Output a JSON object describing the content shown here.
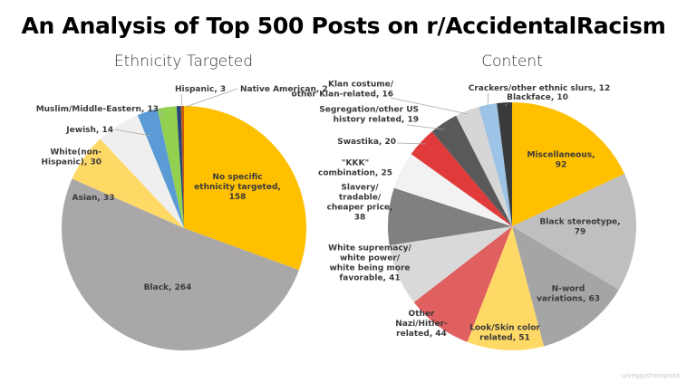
{
  "title": "An Analysis of Top 500 Posts on r/AccidentalRacism",
  "credit": "u/veggytheropoda",
  "chart_data": [
    {
      "type": "pie",
      "title": "Ethnicity Targeted",
      "start": "top",
      "direction": "clockwise",
      "slices": [
        {
          "label": "No specific ethnicity targeted",
          "value": 158,
          "color": "#FFC000",
          "text_lines": [
            "No specific",
            "ethnicity targeted,",
            "158"
          ]
        },
        {
          "label": "Black",
          "value": 264,
          "color": "#A9A7A8",
          "text_lines": [
            "Black, 264"
          ]
        },
        {
          "label": "Asian",
          "value": 33,
          "color": "#FFD966",
          "text_lines": [
            "Asian, 33"
          ]
        },
        {
          "label": "White(non-Hispanic)",
          "value": 30,
          "color": "#EFEFEF",
          "text_lines": [
            "White(non-",
            "Hispanic), 30"
          ]
        },
        {
          "label": "Jewish",
          "value": 14,
          "color": "#5B9BD5",
          "text_lines": [
            "Jewish, 14"
          ]
        },
        {
          "label": "Muslim/Middle-Eastern",
          "value": 13,
          "color": "#92D050",
          "text_lines": [
            "Muslim/Middle-Eastern, 13"
          ]
        },
        {
          "label": "Hispanic",
          "value": 3,
          "color": "#264478",
          "text_lines": [
            "Hispanic, 3"
          ]
        },
        {
          "label": "Native American",
          "value": 2,
          "color": "#C55A11",
          "text_lines": [
            "Native American, 2"
          ]
        }
      ]
    },
    {
      "type": "pie",
      "title": "Content",
      "start": "top",
      "direction": "clockwise",
      "slices": [
        {
          "label": "Miscellaneous",
          "value": 92,
          "color": "#FFC000",
          "text_lines": [
            "Miscellaneous,",
            "92"
          ]
        },
        {
          "label": "Black stereotype",
          "value": 79,
          "color": "#BFBFBF",
          "text_lines": [
            "Black stereotype,",
            "79"
          ]
        },
        {
          "label": "N-word variations",
          "value": 63,
          "color": "#A5A5A5",
          "text_lines": [
            "N-word",
            "variations, 63"
          ]
        },
        {
          "label": "Look/Skin color related",
          "value": 51,
          "color": "#FFD966",
          "text_lines": [
            "Look/Skin color",
            "related, 51"
          ]
        },
        {
          "label": "Other Nazi/Hitler-related",
          "value": 44,
          "color": "#E06060",
          "text_lines": [
            "Other",
            "Nazi/Hitler-",
            "related, 44"
          ]
        },
        {
          "label": "White supremacy/white power/white being more favorable",
          "value": 41,
          "color": "#D9D9D9",
          "text_lines": [
            "White supremacy/",
            "white power/",
            "white being more",
            "favorable, 41"
          ]
        },
        {
          "label": "Slavery/tradable/cheaper price",
          "value": 38,
          "color": "#808080",
          "text_lines": [
            "Slavery/",
            "tradable/",
            "cheaper price,",
            "38"
          ]
        },
        {
          "label": "\"KKK\" combination",
          "value": 25,
          "color": "#F2F2F2",
          "text_lines": [
            "\"KKK\"",
            "combination, 25"
          ]
        },
        {
          "label": "Swastika",
          "value": 20,
          "color": "#E03A3A",
          "text_lines": [
            "Swastika, 20"
          ]
        },
        {
          "label": "Segregation/other US history related",
          "value": 19,
          "color": "#595959",
          "text_lines": [
            "Segregation/other US",
            "history related, 19"
          ]
        },
        {
          "label": "Klan costume/other Klan-related",
          "value": 16,
          "color": "#D6D6D6",
          "text_lines": [
            "Klan costume/",
            "other Klan-related, 16"
          ]
        },
        {
          "label": "Crackers/other ethnic slurs",
          "value": 12,
          "color": "#9DC3E6",
          "text_lines": [
            "Crackers/other ethnic slurs, 12"
          ]
        },
        {
          "label": "Blackface",
          "value": 10,
          "color": "#3A3A3A",
          "text_lines": [
            "Blackface, 10"
          ]
        }
      ]
    }
  ]
}
